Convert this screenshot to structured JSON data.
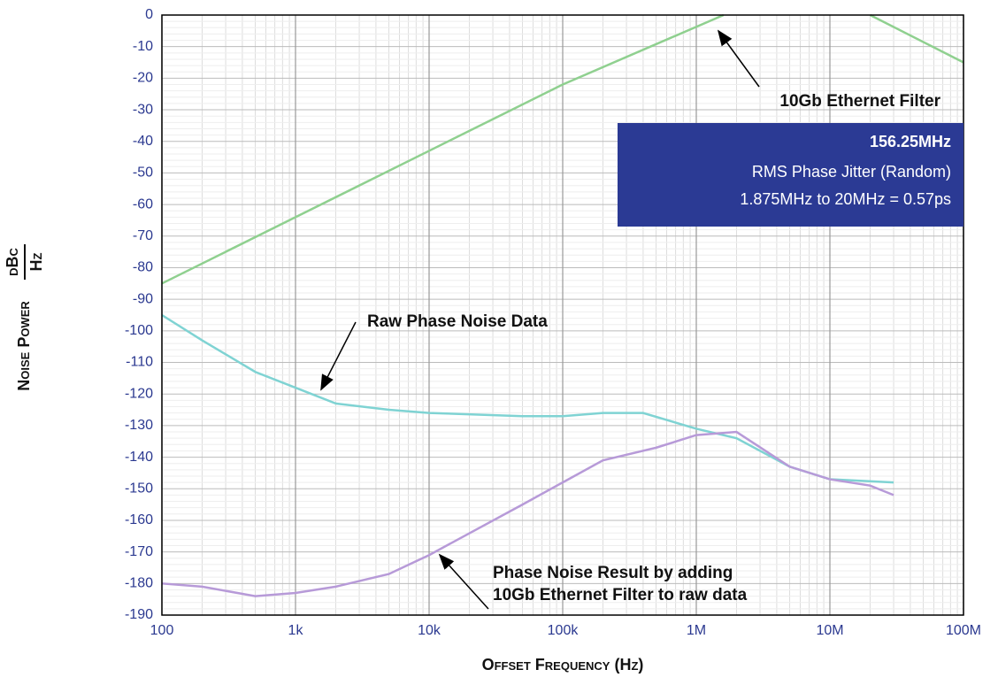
{
  "chart_data": {
    "type": "line",
    "x_label": "Offset Frequency (Hz)",
    "y_label": "Noise Power",
    "y_unit_numerator": "dBc",
    "y_unit_denominator": "Hz",
    "xlog": true,
    "grid": true,
    "xlim": [
      100,
      100000000
    ],
    "ylim": [
      -190,
      0
    ],
    "xticks": [
      100,
      {
        "value": 1000,
        "label": "1k"
      },
      {
        "value": 10000,
        "label": "10k"
      },
      {
        "value": 100000,
        "label": "100k"
      },
      {
        "value": 1000000,
        "label": "1M"
      },
      {
        "value": 10000000,
        "label": "10M"
      },
      {
        "value": 100000000,
        "label": "100M"
      }
    ],
    "yticks": [
      0,
      -10,
      -20,
      -30,
      -40,
      -50,
      -60,
      -70,
      -80,
      -90,
      -100,
      -110,
      -120,
      -130,
      -140,
      -150,
      -160,
      -170,
      -180,
      -190
    ],
    "series": [
      {
        "name": "10Gb Ethernet Filter",
        "color": "#8fd08f",
        "x": [
          100,
          1000,
          10000,
          100000,
          1600000,
          5000000,
          20000000,
          100000000
        ],
        "values": [
          -85,
          -64,
          -43,
          -22,
          0,
          null,
          0,
          -15
        ]
      },
      {
        "name": "Raw Phase Noise Data",
        "color": "#7fd3d3",
        "x": [
          100,
          200,
          500,
          1000,
          2000,
          5000,
          10000,
          50000,
          100000,
          200000,
          400000,
          1000000,
          2000000,
          5000000,
          10000000,
          30000000
        ],
        "values": [
          -95,
          -103,
          -113,
          -118,
          -123,
          -125,
          -126,
          -127,
          -127,
          -126,
          -126,
          -131,
          -134,
          -143,
          -147,
          -148
        ]
      },
      {
        "name": "Phase Noise Result by adding 10Gb Ethernet Filter to raw data",
        "color": "#b79ad8",
        "x": [
          100,
          200,
          500,
          1000,
          2000,
          5000,
          10000,
          50000,
          100000,
          200000,
          500000,
          1000000,
          2000000,
          5000000,
          10000000,
          20000000,
          30000000
        ],
        "values": [
          -180,
          -181,
          -184,
          -183,
          -181,
          -177,
          -171,
          -155,
          -148,
          -141,
          -137,
          -133,
          -132,
          -143,
          -147,
          -149,
          -152
        ]
      }
    ],
    "annotations": [
      "10Gb Ethernet Filter",
      "Raw Phase Noise Data",
      "Phase Noise Result by adding",
      "10Gb Ethernet Filter to raw data"
    ],
    "info_box": {
      "title": "156.25MHz",
      "lines": [
        "RMS Phase Jitter (Random)",
        "1.875MHz to 20MHz = 0.57ps"
      ]
    }
  }
}
